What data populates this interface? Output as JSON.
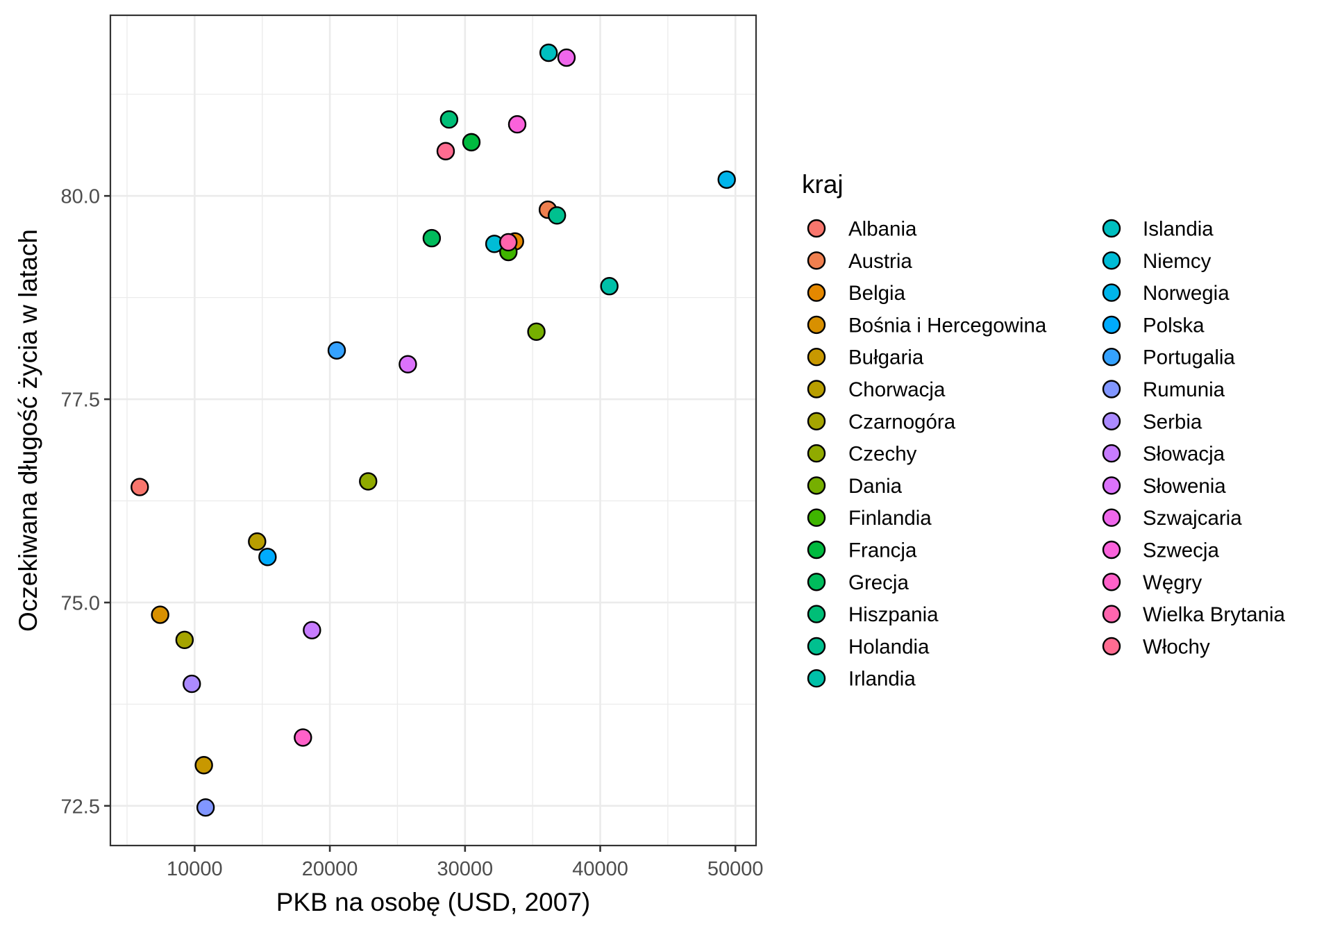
{
  "chart_data": {
    "type": "scatter",
    "title": "",
    "xlabel": "PKB na osobę (USD, 2007)",
    "ylabel": "Oczekiwana długość życia w latach",
    "xlim": [
      3766,
      51528
    ],
    "ylim": [
      72.012,
      82.221
    ],
    "grid": true,
    "x_ticks": [
      10000,
      20000,
      30000,
      40000,
      50000
    ],
    "x_tick_labels": [
      "10000",
      "20000",
      "30000",
      "40000",
      "50000"
    ],
    "x_minor_ticks": [
      5000,
      15000,
      25000,
      35000,
      45000
    ],
    "y_ticks": [
      72.5,
      75.0,
      77.5,
      80.0
    ],
    "y_tick_labels": [
      "72.5",
      "75.0",
      "77.5",
      "80.0"
    ],
    "y_minor_ticks": [
      73.75,
      76.25,
      78.75,
      81.25
    ],
    "legend": {
      "title": "kraj",
      "placement": "right",
      "columns": 2
    },
    "series": [
      {
        "name": "Albania",
        "color": "#F8766D",
        "x": 5937,
        "y": 76.42
      },
      {
        "name": "Austria",
        "color": "#EF7F4F",
        "x": 36126,
        "y": 79.83
      },
      {
        "name": "Belgia",
        "color": "#E48800",
        "x": 33693,
        "y": 79.44
      },
      {
        "name": "Bośnia i Hercegowina",
        "color": "#D89000",
        "x": 7446,
        "y": 74.85
      },
      {
        "name": "Bułgaria",
        "color": "#C89800",
        "x": 10681,
        "y": 73.0
      },
      {
        "name": "Chorwacja",
        "color": "#B89E00",
        "x": 14619,
        "y": 75.75
      },
      {
        "name": "Czarnogóra",
        "color": "#A5A400",
        "x": 9254,
        "y": 74.54
      },
      {
        "name": "Czechy",
        "color": "#90AA00",
        "x": 22833,
        "y": 76.49
      },
      {
        "name": "Dania",
        "color": "#76AF00",
        "x": 35278,
        "y": 78.33
      },
      {
        "name": "Finlandia",
        "color": "#3FB500",
        "x": 33207,
        "y": 79.31
      },
      {
        "name": "Francja",
        "color": "#00BA3F",
        "x": 30470,
        "y": 80.66
      },
      {
        "name": "Grecja",
        "color": "#00BC5C",
        "x": 27538,
        "y": 79.48
      },
      {
        "name": "Hiszpania",
        "color": "#00BE77",
        "x": 28821,
        "y": 80.94
      },
      {
        "name": "Holandia",
        "color": "#00C08F",
        "x": 36798,
        "y": 79.76
      },
      {
        "name": "Irlandia",
        "color": "#00C0A8",
        "x": 40676,
        "y": 78.89
      },
      {
        "name": "Islandia",
        "color": "#00BFC0",
        "x": 36181,
        "y": 81.76
      },
      {
        "name": "Niemcy",
        "color": "#00BCD6",
        "x": 32170,
        "y": 79.41
      },
      {
        "name": "Norwegia",
        "color": "#00B5EB",
        "x": 49357,
        "y": 80.2
      },
      {
        "name": "Polska",
        "color": "#00ABFD",
        "x": 15390,
        "y": 75.56
      },
      {
        "name": "Portugalia",
        "color": "#35A2FF",
        "x": 20510,
        "y": 78.1
      },
      {
        "name": "Rumunia",
        "color": "#8196FF",
        "x": 10808,
        "y": 72.48
      },
      {
        "name": "Serbia",
        "color": "#AB8AFF",
        "x": 9787,
        "y": 74.0
      },
      {
        "name": "Słowacja",
        "color": "#C77CFF",
        "x": 18678,
        "y": 74.66
      },
      {
        "name": "Słowenia",
        "color": "#DB72FB",
        "x": 25768,
        "y": 77.93
      },
      {
        "name": "Szwajcaria",
        "color": "#EF67EB",
        "x": 37506,
        "y": 81.7
      },
      {
        "name": "Szwecja",
        "color": "#FA62DB",
        "x": 33860,
        "y": 80.88
      },
      {
        "name": "Węgry",
        "color": "#FF61C9",
        "x": 18009,
        "y": 73.34
      },
      {
        "name": "Wielka Brytania",
        "color": "#FF65AE",
        "x": 33203,
        "y": 79.43
      },
      {
        "name": "Włochy",
        "color": "#FF6C91",
        "x": 28570,
        "y": 80.55
      }
    ]
  }
}
